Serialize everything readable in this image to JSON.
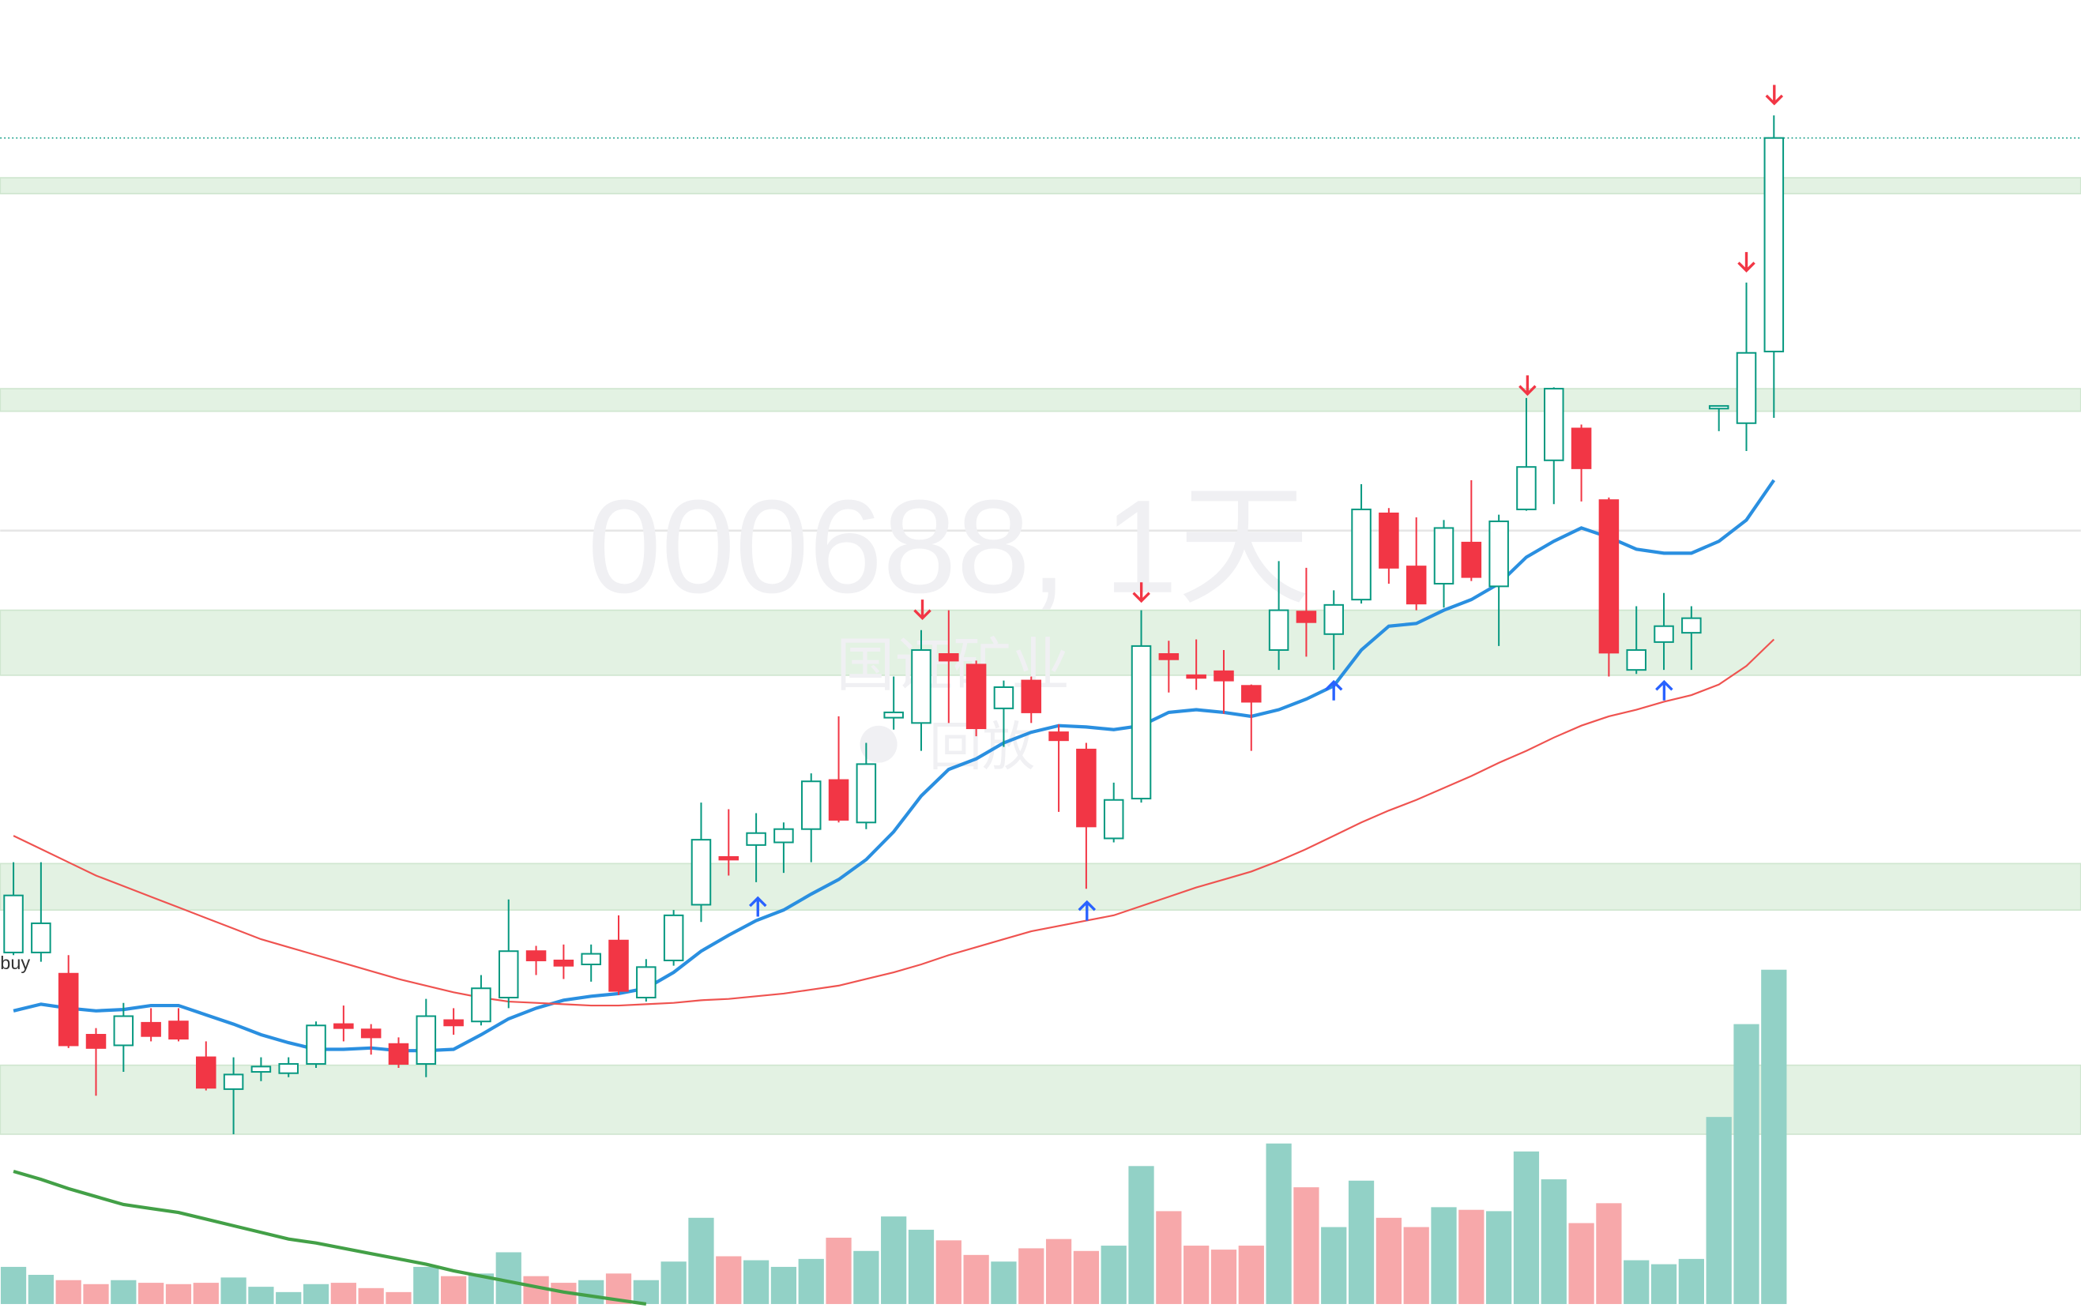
{
  "chart_data": {
    "type": "candlestick",
    "watermark": "000688, 1天",
    "subtitle": "国证矿业",
    "replay": "回放",
    "annotation": "buy",
    "ylim": [
      14,
      1000
    ],
    "y2lim": [
      0,
      300
    ],
    "up_color": "#089981",
    "down_color": "#f23645",
    "open": [
      282,
      282,
      266,
      220,
      212,
      229,
      230,
      203,
      179,
      192,
      191,
      198,
      228,
      224,
      213,
      198,
      231,
      230,
      248,
      283,
      276,
      273,
      291,
      248,
      276,
      318,
      354,
      363,
      365,
      375,
      412,
      380,
      459,
      455,
      507,
      499,
      466,
      487,
      448,
      435,
      368,
      398,
      507,
      491,
      494,
      483,
      510,
      539,
      522,
      548,
      613,
      573,
      560,
      591,
      558,
      616,
      653,
      677,
      623,
      495,
      516,
      523,
      692,
      681,
      735
    ],
    "high": [
      350,
      350,
      280,
      225,
      244,
      240,
      240,
      215,
      203,
      203,
      203,
      230,
      242,
      228,
      218,
      247,
      240,
      265,
      322,
      287,
      288,
      288,
      310,
      277,
      314,
      395,
      390,
      387,
      380,
      417,
      460,
      440,
      490,
      525,
      540,
      502,
      487,
      490,
      454,
      440,
      410,
      540,
      517,
      518,
      510,
      484,
      577,
      572,
      555,
      635,
      617,
      610,
      608,
      638,
      612,
      700,
      708,
      680,
      625,
      543,
      553,
      543,
      694,
      787,
      913
    ],
    "low": [
      280,
      275,
      210,
      174,
      192,
      215,
      215,
      178,
      145,
      185,
      188,
      195,
      215,
      205,
      195,
      188,
      220,
      227,
      240,
      265,
      262,
      260,
      250,
      245,
      272,
      305,
      340,
      335,
      342,
      350,
      380,
      375,
      450,
      434,
      455,
      445,
      437,
      455,
      388,
      330,
      365,
      395,
      478,
      480,
      462,
      434,
      495,
      505,
      495,
      545,
      560,
      540,
      542,
      562,
      513,
      615,
      620,
      622,
      490,
      492,
      495,
      495,
      675,
      660,
      685
    ],
    "close": [
      325,
      304,
      212,
      210,
      234,
      219,
      217,
      180,
      190,
      196,
      198,
      227,
      225,
      218,
      198,
      234,
      227,
      255,
      283,
      276,
      272,
      281,
      253,
      271,
      310,
      367,
      352,
      372,
      375,
      411,
      382,
      424,
      463,
      510,
      502,
      451,
      482,
      463,
      442,
      377,
      397,
      513,
      503,
      489,
      487,
      471,
      540,
      531,
      544,
      616,
      572,
      545,
      602,
      565,
      607,
      648,
      707,
      647,
      508,
      510,
      528,
      534,
      694,
      734,
      896
    ],
    "volume": [
      28,
      22,
      18,
      15,
      18,
      16,
      15,
      16,
      20,
      13,
      9,
      15,
      16,
      12,
      9,
      28,
      21,
      23,
      39,
      21,
      16,
      18,
      23,
      18,
      32,
      65,
      36,
      33,
      28,
      34,
      50,
      40,
      66,
      56,
      48,
      37,
      32,
      42,
      49,
      40,
      44,
      104,
      70,
      44,
      41,
      44,
      121,
      88,
      58,
      93,
      65,
      58,
      73,
      71,
      70,
      115,
      94,
      61,
      76,
      33,
      30,
      34,
      141,
      211,
      252
    ],
    "series": [
      {
        "color": "#2a8fe0",
        "values": [
          238,
          243,
          240,
          238,
          239,
          242,
          242,
          235,
          228,
          220,
          214,
          209,
          209,
          210,
          208,
          208,
          209,
          220,
          232,
          240,
          246,
          249,
          251,
          255,
          267,
          283,
          295,
          306,
          314,
          326,
          337,
          352,
          373,
          400,
          420,
          428,
          440,
          448,
          453,
          452,
          450,
          453,
          463,
          465,
          463,
          460,
          465,
          473,
          483,
          510,
          528,
          530,
          540,
          548,
          560,
          580,
          592,
          602,
          595,
          586,
          583,
          583,
          592,
          608,
          638
        ]
      },
      {
        "color": "#ef5350",
        "values": [
          370,
          360,
          350,
          340,
          332,
          324,
          316,
          308,
          300,
          292,
          286,
          280,
          274,
          268,
          262,
          257,
          252,
          248,
          245,
          244,
          243,
          242,
          242,
          243,
          244,
          246,
          247,
          249,
          251,
          254,
          257,
          262,
          267,
          273,
          280,
          286,
          292,
          298,
          302,
          306,
          310,
          317,
          324,
          331,
          337,
          343,
          351,
          360,
          370,
          380,
          389,
          397,
          406,
          415,
          425,
          434,
          444,
          453,
          460,
          465,
          471,
          476,
          484,
          498,
          518
        ]
      },
      {
        "color": "#43a047",
        "axis": "y2",
        "values": [
          100,
          94,
          87,
          81,
          75,
          72,
          69,
          64,
          59,
          54,
          49,
          46,
          42,
          38,
          34,
          30,
          25,
          21,
          17,
          13,
          9,
          6,
          3,
          0,
          null,
          null,
          null,
          null,
          null,
          null,
          null,
          null,
          null,
          null,
          null,
          null,
          null,
          null,
          null,
          null,
          null,
          null,
          null,
          null,
          null,
          null,
          null,
          null,
          null,
          null,
          null,
          null,
          null,
          null,
          null,
          null,
          null,
          null,
          null,
          null,
          null,
          null,
          null,
          null,
          null
        ]
      }
    ],
    "zones": [
      [
        854,
        866
      ],
      [
        690,
        707
      ],
      [
        491,
        540
      ],
      [
        314,
        349
      ],
      [
        145,
        197
      ]
    ],
    "zone_color": "#e3f2e3"
  }
}
